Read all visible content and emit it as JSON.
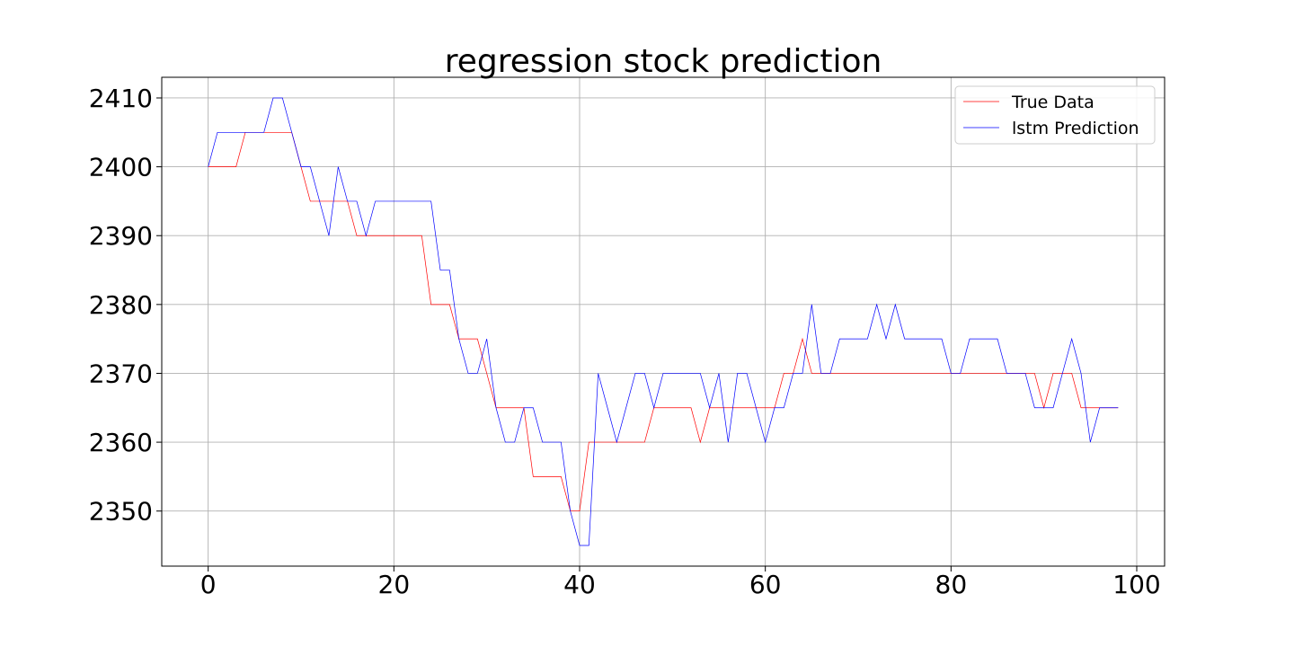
{
  "chart_data": {
    "type": "line",
    "title": "regression stock prediction",
    "xlabel": "",
    "ylabel": "",
    "xlim": [
      -5,
      103
    ],
    "ylim": [
      2342,
      2413
    ],
    "xticks": [
      0,
      20,
      40,
      60,
      80,
      100
    ],
    "yticks": [
      2350,
      2360,
      2370,
      2380,
      2390,
      2400,
      2410
    ],
    "grid": true,
    "legend_position": "top-right",
    "x": [
      0,
      1,
      2,
      3,
      4,
      5,
      6,
      7,
      8,
      9,
      10,
      11,
      12,
      13,
      14,
      15,
      16,
      17,
      18,
      19,
      20,
      21,
      22,
      23,
      24,
      25,
      26,
      27,
      28,
      29,
      30,
      31,
      32,
      33,
      34,
      35,
      36,
      37,
      38,
      39,
      40,
      41,
      42,
      43,
      44,
      45,
      46,
      47,
      48,
      49,
      50,
      51,
      52,
      53,
      54,
      55,
      56,
      57,
      58,
      59,
      60,
      61,
      62,
      63,
      64,
      65,
      66,
      67,
      68,
      69,
      70,
      71,
      72,
      73,
      74,
      75,
      76,
      77,
      78,
      79,
      80,
      81,
      82,
      83,
      84,
      85,
      86,
      87,
      88,
      89,
      90,
      91,
      92,
      93,
      94,
      95,
      96,
      97,
      98
    ],
    "series": [
      {
        "name": "True Data",
        "color": "#ff0000",
        "values": [
          2400,
          2400,
          2400,
          2400,
          2405,
          2405,
          2405,
          2405,
          2405,
          2405,
          2400,
          2395,
          2395,
          2395,
          2395,
          2395,
          2390,
          2390,
          2390,
          2390,
          2390,
          2390,
          2390,
          2390,
          2380,
          2380,
          2380,
          2375,
          2375,
          2375,
          2370,
          2365,
          2365,
          2365,
          2365,
          2355,
          2355,
          2355,
          2355,
          2350,
          2350,
          2360,
          2360,
          2360,
          2360,
          2360,
          2360,
          2360,
          2365,
          2365,
          2365,
          2365,
          2365,
          2360,
          2365,
          2365,
          2365,
          2365,
          2365,
          2365,
          2365,
          2365,
          2370,
          2370,
          2375,
          2370,
          2370,
          2370,
          2370,
          2370,
          2370,
          2370,
          2370,
          2370,
          2370,
          2370,
          2370,
          2370,
          2370,
          2370,
          2370,
          2370,
          2370,
          2370,
          2370,
          2370,
          2370,
          2370,
          2370,
          2370,
          2365,
          2370,
          2370,
          2370,
          2365,
          2365,
          2365,
          2365,
          2365
        ]
      },
      {
        "name": "lstm Prediction",
        "color": "#0000ff",
        "values": [
          2400,
          2405,
          2405,
          2405,
          2405,
          2405,
          2405,
          2410,
          2410,
          2405,
          2400,
          2400,
          2395,
          2390,
          2400,
          2395,
          2395,
          2390,
          2395,
          2395,
          2395,
          2395,
          2395,
          2395,
          2395,
          2385,
          2385,
          2375,
          2370,
          2370,
          2375,
          2365,
          2360,
          2360,
          2365,
          2365,
          2360,
          2360,
          2360,
          2350,
          2345,
          2345,
          2370,
          2365,
          2360,
          2365,
          2370,
          2370,
          2365,
          2370,
          2370,
          2370,
          2370,
          2370,
          2365,
          2370,
          2360,
          2370,
          2370,
          2365,
          2360,
          2365,
          2365,
          2370,
          2370,
          2380,
          2370,
          2370,
          2375,
          2375,
          2375,
          2375,
          2380,
          2375,
          2380,
          2375,
          2375,
          2375,
          2375,
          2375,
          2370,
          2370,
          2375,
          2375,
          2375,
          2375,
          2370,
          2370,
          2370,
          2365,
          2365,
          2365,
          2370,
          2375,
          2370,
          2360,
          2365,
          2365,
          2365
        ]
      }
    ]
  }
}
